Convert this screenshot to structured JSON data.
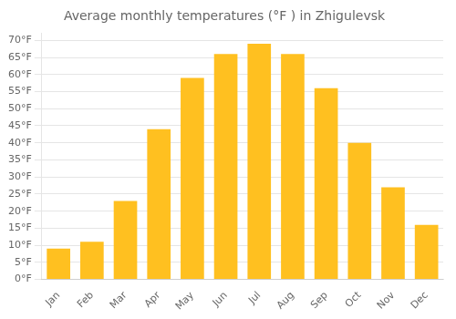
{
  "chart_data": {
    "type": "bar",
    "title": "Average monthly temperatures (°F ) in Zhigulevsk",
    "categories": [
      "Jan",
      "Feb",
      "Mar",
      "Apr",
      "May",
      "Jun",
      "Jul",
      "Aug",
      "Sep",
      "Oct",
      "Nov",
      "Dec"
    ],
    "values": [
      9,
      11,
      23,
      44,
      59,
      66,
      69,
      66,
      56,
      40,
      27,
      16
    ],
    "color": "#FFC020",
    "ylim": [
      0,
      72
    ],
    "yticks": [
      {
        "value": 0,
        "label": "0°F"
      },
      {
        "value": 5,
        "label": "5°F"
      },
      {
        "value": 10,
        "label": "10°F"
      },
      {
        "value": 15,
        "label": "15°F"
      },
      {
        "value": 20,
        "label": "20°F"
      },
      {
        "value": 25,
        "label": "25°F"
      },
      {
        "value": 30,
        "label": "30°F"
      },
      {
        "value": 35,
        "label": "35°F"
      },
      {
        "value": 40,
        "label": "40°F"
      },
      {
        "value": 45,
        "label": "45°F"
      },
      {
        "value": 50,
        "label": "50°F"
      },
      {
        "value": 55,
        "label": "55°F"
      },
      {
        "value": 60,
        "label": "60°F"
      },
      {
        "value": 65,
        "label": "65°F"
      },
      {
        "value": 70,
        "label": "70°F"
      }
    ],
    "grid": true
  }
}
